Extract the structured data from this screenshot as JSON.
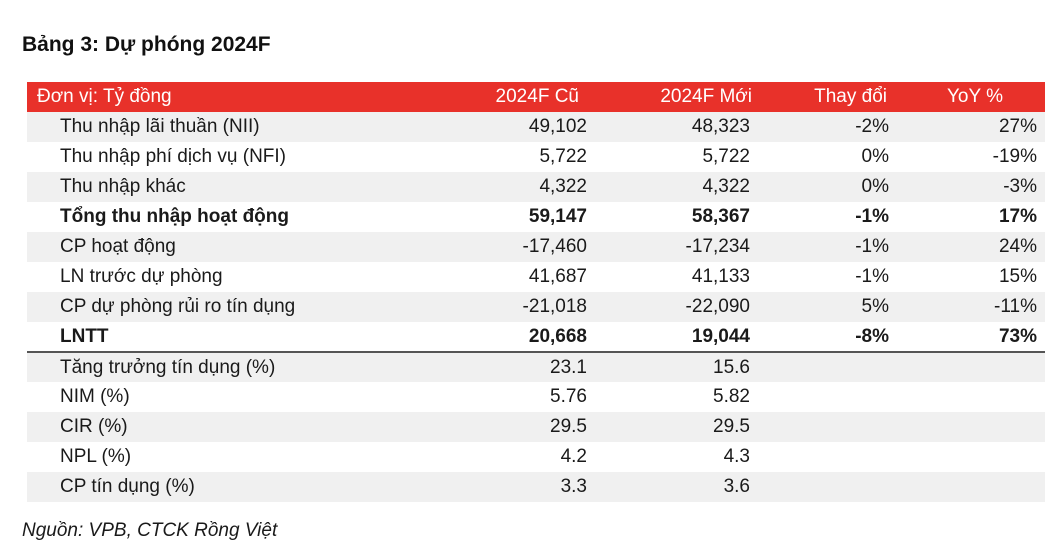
{
  "title": "Bảng 3: Dự phóng 2024F",
  "header": {
    "unit": "Đơn vị: Tỷ đồng",
    "old": "2024F Cũ",
    "new": "2024F Mới",
    "change": "Thay đổi",
    "yoy": "YoY %"
  },
  "rows": [
    {
      "label": "Thu nhập lãi thuần (NII)",
      "old": "49,102",
      "new": "48,323",
      "change": "-2%",
      "yoy": "27%"
    },
    {
      "label": "Thu nhập phí dịch vụ (NFI)",
      "old": "5,722",
      "new": "5,722",
      "change": "0%",
      "yoy": "-19%"
    },
    {
      "label": "Thu nhập khác",
      "old": "4,322",
      "new": "4,322",
      "change": "0%",
      "yoy": "-3%"
    },
    {
      "label": "Tổng thu nhập hoạt động",
      "old": "59,147",
      "new": "58,367",
      "change": "-1%",
      "yoy": "17%"
    },
    {
      "label": "CP hoạt động",
      "old": "-17,460",
      "new": "-17,234",
      "change": "-1%",
      "yoy": "24%"
    },
    {
      "label": "LN trước dự phòng",
      "old": "41,687",
      "new": "41,133",
      "change": "-1%",
      "yoy": "15%"
    },
    {
      "label": "CP dự phòng rủi ro tín dụng",
      "old": "-21,018",
      "new": "-22,090",
      "change": "5%",
      "yoy": "-11%"
    },
    {
      "label": "LNTT",
      "old": "20,668",
      "new": "19,044",
      "change": "-8%",
      "yoy": "73%"
    },
    {
      "label": "Tăng trưởng tín dụng (%)",
      "old": "23.1",
      "new": "15.6",
      "change": "",
      "yoy": ""
    },
    {
      "label": "NIM (%)",
      "old": "5.76",
      "new": "5.82",
      "change": "",
      "yoy": ""
    },
    {
      "label": "CIR (%)",
      "old": "29.5",
      "new": "29.5",
      "change": "",
      "yoy": ""
    },
    {
      "label": "NPL (%)",
      "old": "4.2",
      "new": "4.3",
      "change": "",
      "yoy": ""
    },
    {
      "label": "CP tín dụng (%)",
      "old": "3.3",
      "new": "3.6",
      "change": "",
      "yoy": ""
    }
  ],
  "source": "Nguồn: VPB, CTCK Rồng Việt",
  "colors": {
    "header_bg": "#e8312a",
    "header_text": "#ffffff",
    "row_shade": "#f0f0f0"
  }
}
